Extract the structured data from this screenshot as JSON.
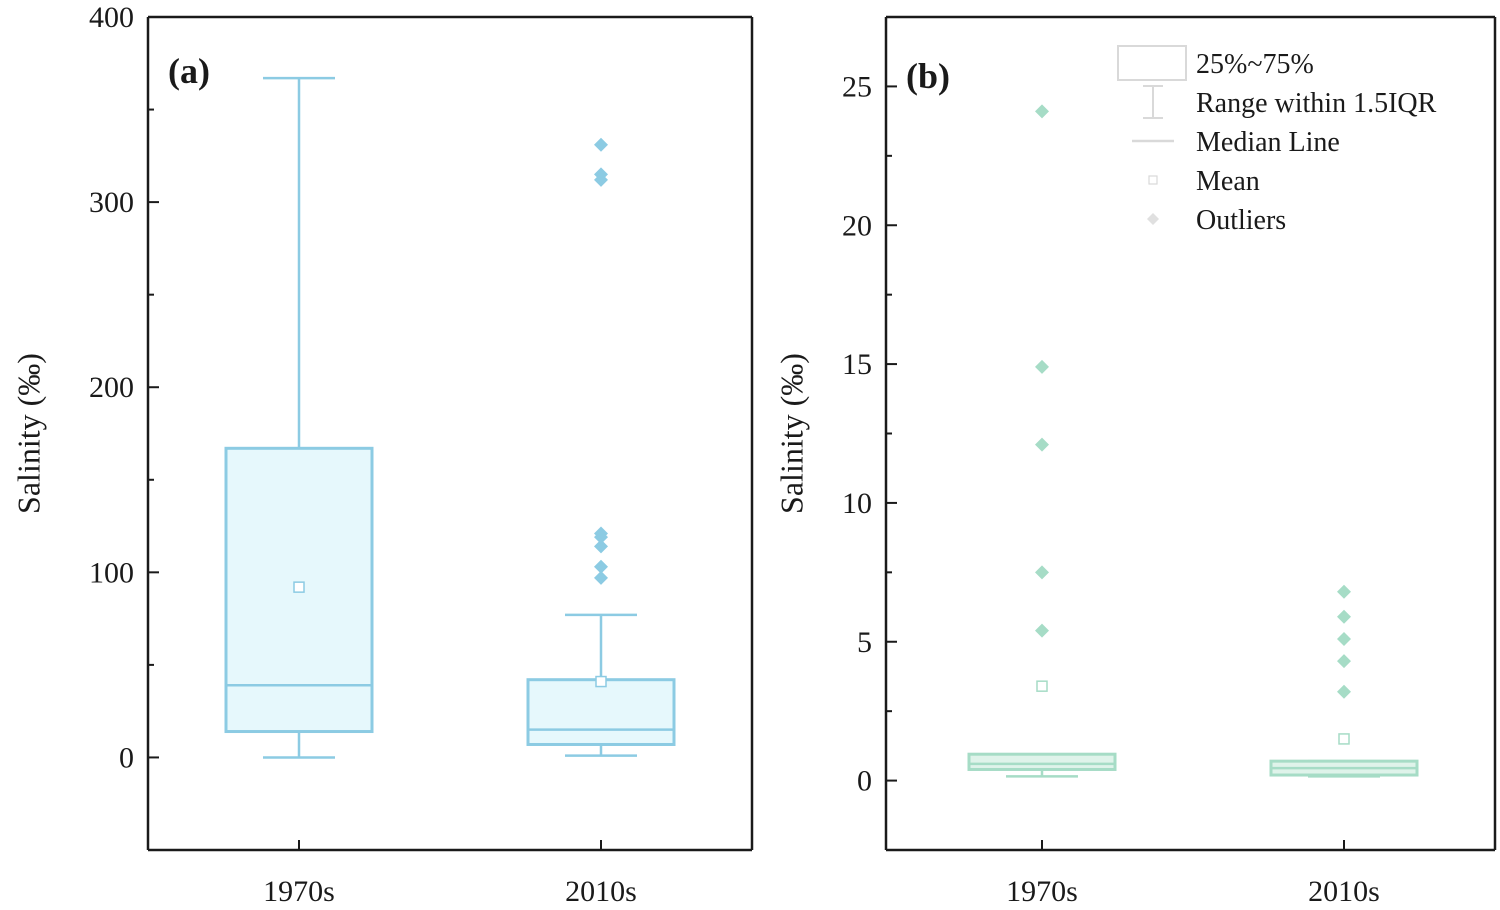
{
  "chart_data": [
    {
      "type": "box",
      "panel_label": "(a)",
      "ylabel": "Salinity (‰)",
      "ylim": [
        -50,
        400
      ],
      "yticks": [
        0,
        100,
        200,
        300,
        400
      ],
      "categories": [
        "1970s",
        "2010s"
      ],
      "color": "#8ccbe3",
      "fill": "#e6f8fc",
      "boxes": [
        {
          "category": "1970s",
          "q1": 14,
          "median": 39,
          "q3": 167,
          "whisker_low": 0,
          "whisker_high": 367,
          "mean": 92,
          "outliers": []
        },
        {
          "category": "2010s",
          "q1": 7,
          "median": 15,
          "q3": 42,
          "whisker_low": 1,
          "whisker_high": 77,
          "mean": 41,
          "outliers": [
            331,
            315,
            312,
            121,
            119,
            114,
            103,
            97
          ]
        }
      ]
    },
    {
      "type": "box",
      "panel_label": "(b)",
      "ylabel": "Salinity (‰)",
      "ylim": [
        -2.5,
        27.5
      ],
      "yticks": [
        0,
        5,
        10,
        15,
        20,
        25
      ],
      "categories": [
        "1970s",
        "2010s"
      ],
      "color": "#a6dcc6",
      "fill": "#dff3ea",
      "boxes": [
        {
          "category": "1970s",
          "q1": 0.4,
          "median": 0.6,
          "q3": 0.95,
          "whisker_low": 0.15,
          "whisker_high": 0.95,
          "mean": 3.4,
          "outliers": [
            24.1,
            14.9,
            12.1,
            7.5,
            5.4
          ]
        },
        {
          "category": "2010s",
          "q1": 0.2,
          "median": 0.45,
          "q3": 0.7,
          "whisker_low": 0.15,
          "whisker_high": 0.7,
          "mean": 1.5,
          "outliers": [
            6.8,
            5.9,
            5.1,
            4.3,
            3.2
          ]
        }
      ],
      "legend": {
        "position": "top-right",
        "items": [
          {
            "key": "box",
            "label": "25%~75%"
          },
          {
            "key": "whisker",
            "label": "Range within 1.5IQR"
          },
          {
            "key": "median",
            "label": "Median Line"
          },
          {
            "key": "mean",
            "label": "Mean"
          },
          {
            "key": "outlier",
            "label": "Outliers"
          }
        ]
      }
    }
  ]
}
